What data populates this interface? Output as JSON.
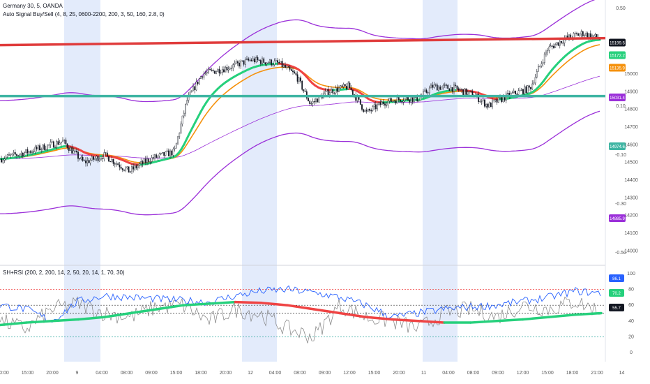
{
  "header": {
    "symbol": "Germany 30, 5, OANDA",
    "indicator": "Auto Signal Buy/Sell (4, 8, 25, 0600-2200, 200, 3, 50, 160, 2.8, 0)",
    "oscillator": "SH+RSI (200, 2, 200, 14, 2, 50, 20, 14, 1, 70, 30)"
  },
  "colors": {
    "candle": "#131722",
    "ema_up": "#26d07c",
    "ema_down": "#ef4444",
    "orange": "#f5910c",
    "purple": "#9b30d9",
    "resistance": "#e03c3c",
    "support": "#3fb5a3",
    "session": "#e3ebfb",
    "rsi": "#2962ff",
    "stoch": "#808080"
  },
  "chart_data": [
    {
      "type": "candlestick",
      "x_ticks": [
        "00:00",
        "15:00",
        "20:00",
        "9",
        "04:00",
        "08:00",
        "09:00",
        "15:00",
        "18:00",
        "20:00",
        "12",
        "04:00",
        "08:00",
        "09:00",
        "12:00",
        "15:00",
        "20:00",
        "11",
        "04:00",
        "08:00",
        "09:00",
        "12:00",
        "15:00",
        "18:00",
        "21:00",
        "14"
      ],
      "y_ticks": [
        15000,
        14900,
        14800,
        14700,
        14600,
        14500,
        14400,
        14300,
        14200,
        14100,
        14000
      ],
      "right_axis": [
        "0.50",
        "0.30",
        "0.10",
        "-0.10",
        "-0.30",
        "-0.50"
      ],
      "price_badges": [
        "15199.5",
        "15172.2",
        "15135.9",
        "15031.4",
        "14974.6",
        "14885.9"
      ],
      "resistance_level": 15195,
      "support_level": 14875
    },
    {
      "type": "line",
      "series": [
        {
          "values": [
            35,
            38,
            40,
            42,
            45,
            50,
            55,
            60,
            62,
            64,
            63,
            60,
            55,
            50,
            45,
            42,
            40,
            38,
            38,
            40,
            42,
            45,
            48,
            50
          ]
        },
        {
          "values": [
            60,
            55,
            40,
            65,
            72,
            70,
            68,
            66,
            64,
            72,
            78,
            80,
            76,
            70,
            60,
            45,
            50,
            55,
            58,
            60,
            65,
            70,
            78,
            75
          ]
        },
        {
          "values": [
            40,
            30,
            55,
            62,
            50,
            45,
            58,
            60,
            40,
            55,
            48,
            30,
            20,
            60,
            45,
            40,
            30,
            50,
            55,
            45,
            60,
            55,
            65,
            52
          ]
        }
      ],
      "y_ticks": [
        100,
        80,
        60,
        40,
        20,
        0
      ],
      "value_badges": [
        "86.1",
        "70.2",
        "55.7"
      ]
    }
  ]
}
